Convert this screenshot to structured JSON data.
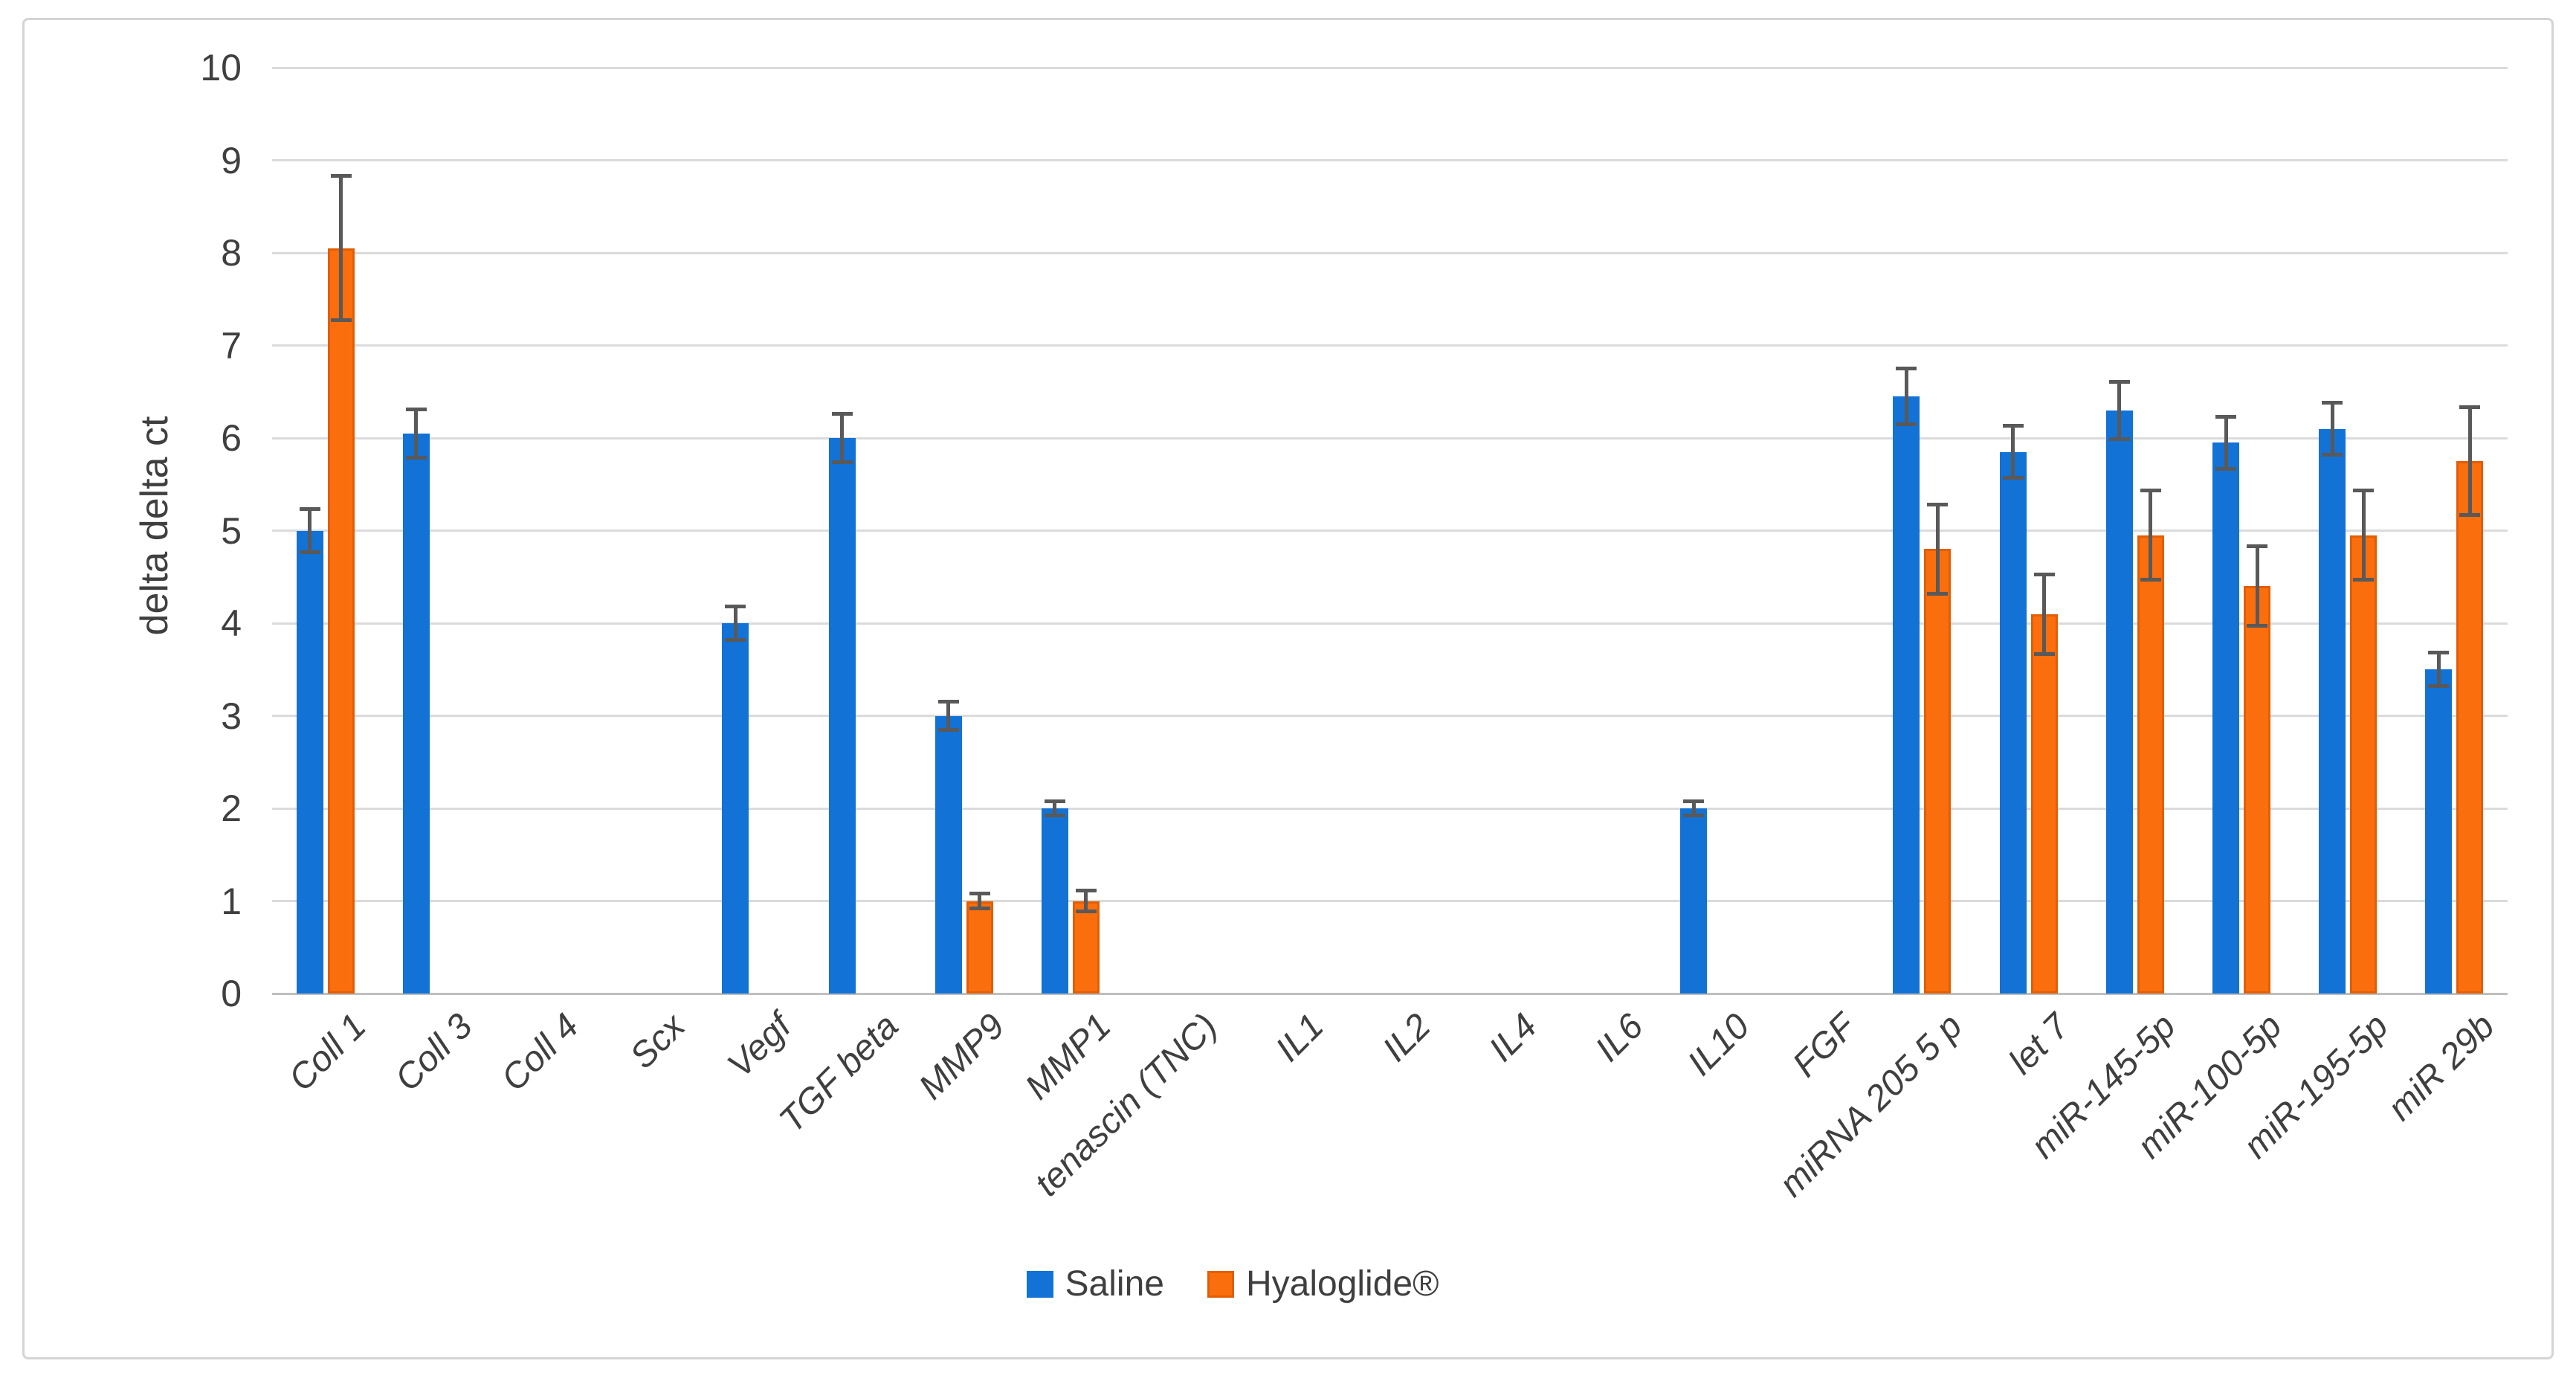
{
  "chart_data": {
    "type": "bar",
    "title": "",
    "xlabel": "",
    "ylabel": "delta delta ct",
    "ylim": [
      0,
      10
    ],
    "yticks": [
      0,
      1,
      2,
      3,
      4,
      5,
      6,
      7,
      8,
      9,
      10
    ],
    "grid": true,
    "legend_position": "bottom-center",
    "error_bar_color": "#595959",
    "gridline_color": "#DBDBDB",
    "axis_line_color": "#BFBFBF",
    "text_color": "#3F3F3F",
    "categories": [
      "Coll 1",
      "Coll 3",
      "Coll 4",
      "Scx",
      "Vegf",
      "TGF beta",
      "MMP9",
      "MMP1",
      "tenascin (TNC)",
      "IL1",
      "IL2",
      "IL4",
      "IL6",
      "IL10",
      "FGF",
      "miRNA 205 5 p",
      "let 7",
      "miR-145-5p",
      "miR-100-5p",
      "miR-195-5p",
      "miR 29b"
    ],
    "series": [
      {
        "name": "Saline",
        "color": "#1272D5",
        "border_color": "",
        "values": [
          5.0,
          6.05,
          0,
          0,
          4.0,
          6.0,
          3.0,
          2.0,
          0,
          0,
          0,
          0,
          0,
          2.0,
          0,
          6.45,
          5.85,
          6.3,
          5.95,
          6.1,
          3.5
        ],
        "errors": [
          0.25,
          0.28,
          0,
          0,
          0.2,
          0.28,
          0.17,
          0.1,
          0,
          0,
          0,
          0,
          0,
          0.1,
          0,
          0.32,
          0.3,
          0.33,
          0.3,
          0.3,
          0.2
        ]
      },
      {
        "name": "Hyaloglide®",
        "color": "#FA6E0E",
        "border_color": "#E25E04",
        "values": [
          8.05,
          0,
          0,
          0,
          0,
          0,
          1.0,
          1.0,
          0,
          0,
          0,
          0,
          0,
          0,
          0,
          4.8,
          4.1,
          4.95,
          4.4,
          4.95,
          5.75
        ],
        "errors": [
          0.8,
          0,
          0,
          0,
          0,
          0,
          0.1,
          0.13,
          0,
          0,
          0,
          0,
          0,
          0,
          0,
          0.5,
          0.45,
          0.5,
          0.45,
          0.5,
          0.6
        ]
      }
    ]
  }
}
